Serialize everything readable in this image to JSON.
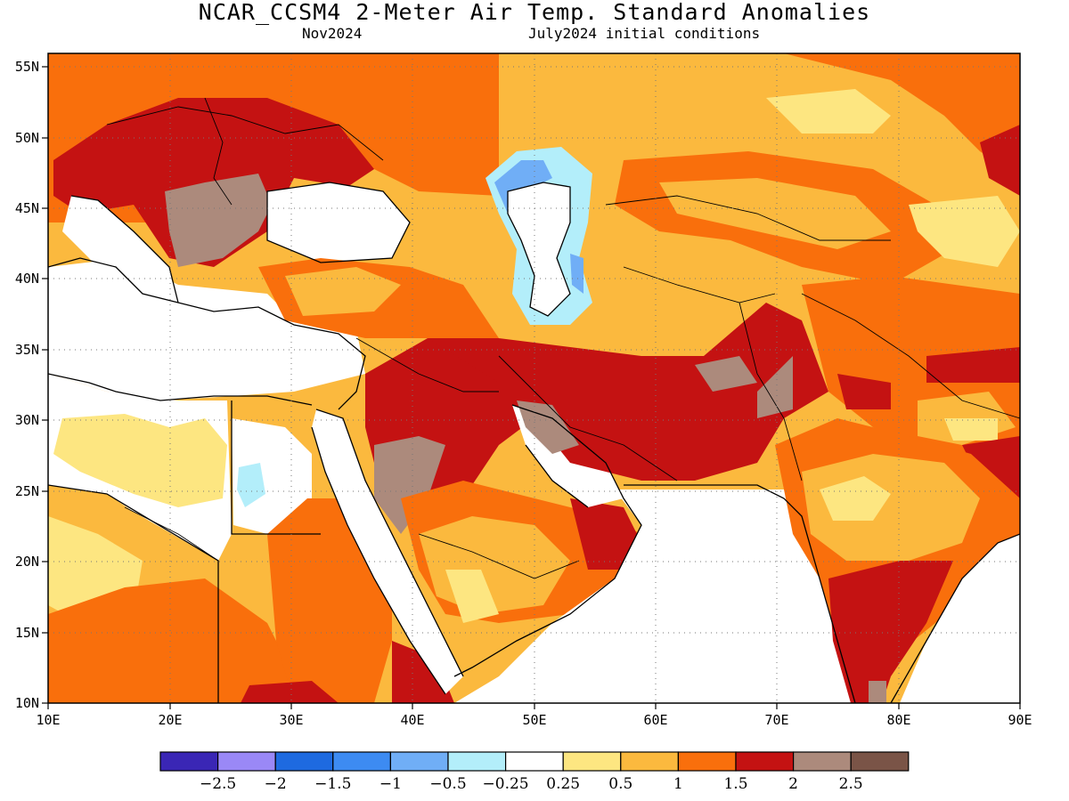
{
  "title": "NCAR_CCSM4 2-Meter Air Temp. Standard Anomalies",
  "subtitle_left": "Nov2024",
  "subtitle_right": "July2024 initial conditions",
  "map": {
    "lon_range": [
      10,
      90
    ],
    "lat_range": [
      10,
      56
    ],
    "lon_ticks": [
      "10E",
      "20E",
      "30E",
      "40E",
      "50E",
      "60E",
      "70E",
      "80E",
      "90E"
    ],
    "lat_ticks": [
      "55N",
      "50N",
      "45N",
      "40N",
      "35N",
      "30N",
      "25N",
      "20N",
      "15N",
      "10N"
    ],
    "gridlines": "dotted",
    "masked_regions": [
      "Mediterranean Sea",
      "Black Sea",
      "Red Sea",
      "Persian Gulf",
      "Arabian Sea",
      "Caspian Sea",
      "Libya-Egypt desert"
    ]
  },
  "colorbar": {
    "colors": [
      "#3a26b5",
      "#9a88f6",
      "#1e6ae0",
      "#3d8bf2",
      "#70aef6",
      "#b3eefa",
      "#ffffff",
      "#fde681",
      "#fbb93e",
      "#f96f0c",
      "#c41212",
      "#ac8a7c",
      "#7a5447"
    ],
    "labels": [
      "−2.5",
      "−2",
      "−1.5",
      "−1",
      "−0.5",
      "−0.25",
      "0.25",
      "0.5",
      "1",
      "1.5",
      "2",
      "2.5"
    ]
  },
  "legend_colors": {
    "low": "#fde681",
    "mid": "#fbb93e",
    "high": "#f96f0c",
    "very_high": "#c41212",
    "extreme": "#ac8a7c",
    "cool1": "#b3eefa",
    "cool2": "#70aef6"
  }
}
